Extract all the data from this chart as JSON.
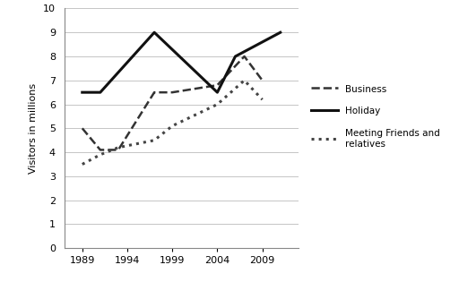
{
  "business": {
    "x": [
      1989,
      1991,
      1993,
      1997,
      1999,
      2004,
      2007,
      2009
    ],
    "y": [
      5.0,
      4.1,
      4.1,
      6.5,
      6.5,
      6.8,
      8.0,
      7.0
    ],
    "label": "Business",
    "linestyle": "--",
    "linewidth": 1.8,
    "color": "#333333"
  },
  "holiday": {
    "x": [
      1989,
      1991,
      1997,
      2004,
      2006,
      2011
    ],
    "y": [
      6.5,
      6.5,
      9.0,
      6.5,
      8.0,
      9.0
    ],
    "label": "Holiday",
    "linestyle": "-",
    "linewidth": 2.2,
    "color": "#111111"
  },
  "friends": {
    "x": [
      1989,
      1991,
      1993,
      1997,
      1999,
      2004,
      2007,
      2009
    ],
    "y": [
      3.5,
      3.9,
      4.2,
      4.5,
      5.1,
      6.0,
      7.0,
      6.2
    ],
    "label": "Meeting Friends and\nrelatives",
    "linestyle": ":",
    "linewidth": 2.2,
    "color": "#444444"
  },
  "ylabel": "Visitors in millions",
  "xlim": [
    1987,
    2013
  ],
  "ylim": [
    0,
    10
  ],
  "yticks": [
    0,
    1,
    2,
    3,
    4,
    5,
    6,
    7,
    8,
    9,
    10
  ],
  "xticks": [
    1989,
    1994,
    1999,
    2004,
    2009
  ],
  "background_color": "#ffffff",
  "grid_color": "#bbbbbb"
}
